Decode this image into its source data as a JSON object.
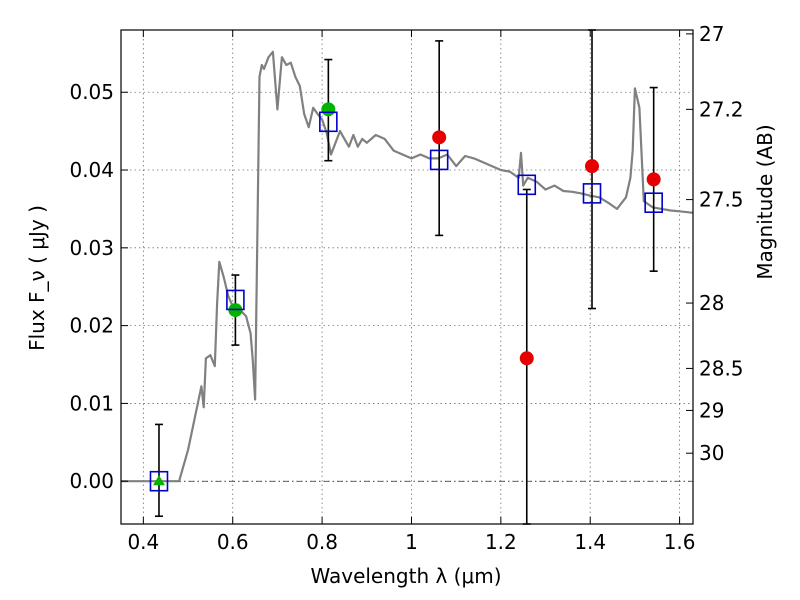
{
  "chart_data": {
    "type": "scatter",
    "xlabel": "Wavelength  λ (μm)",
    "ylabel": "Flux  F_ν ( μJy )",
    "ylabel_right": "Magnitude (AB)",
    "xlim": [
      0.35,
      1.63
    ],
    "ylim": [
      -0.0055,
      0.058
    ],
    "x_ticks": [
      0.4,
      0.6,
      0.8,
      1.0,
      1.2,
      1.4,
      1.6
    ],
    "x_tick_labels": [
      "0.4",
      "0.6",
      "0.8",
      "1",
      "1.2",
      "1.4",
      "1.6"
    ],
    "y_ticks": [
      0.0,
      0.01,
      0.02,
      0.03,
      0.04,
      0.05
    ],
    "y_tick_labels": [
      "0.00",
      "0.01",
      "0.02",
      "0.03",
      "0.04",
      "0.05"
    ],
    "right_ticks": [
      {
        "label": "27",
        "flux": 0.0575
      },
      {
        "label": "27.2",
        "flux": 0.0478
      },
      {
        "label": "27.5",
        "flux": 0.0362
      },
      {
        "label": "28",
        "flux": 0.0229
      },
      {
        "label": "28.5",
        "flux": 0.0145
      },
      {
        "label": "29",
        "flux": 0.0091
      },
      {
        "label": "30",
        "flux": 0.0036
      }
    ],
    "grid": true,
    "zero_line": 0.0,
    "colors": {
      "model": "#808080",
      "detection": "#00b400",
      "nondetection": "#e60000",
      "model_flux": "#0000cc",
      "errorbar": "#000000"
    },
    "series": [
      {
        "kind": "model_sed",
        "x": [
          0.35,
          0.48,
          0.5,
          0.52,
          0.53,
          0.535,
          0.54,
          0.55,
          0.56,
          0.565,
          0.57,
          0.58,
          0.59,
          0.6,
          0.61,
          0.62,
          0.63,
          0.64,
          0.645,
          0.65,
          0.655,
          0.66,
          0.665,
          0.67,
          0.68,
          0.69,
          0.7,
          0.71,
          0.72,
          0.73,
          0.74,
          0.75,
          0.76,
          0.77,
          0.78,
          0.79,
          0.8,
          0.81,
          0.82,
          0.83,
          0.84,
          0.85,
          0.86,
          0.87,
          0.88,
          0.89,
          0.9,
          0.92,
          0.94,
          0.96,
          0.98,
          1.0,
          1.02,
          1.04,
          1.06,
          1.08,
          1.1,
          1.12,
          1.14,
          1.16,
          1.18,
          1.2,
          1.22,
          1.24,
          1.245,
          1.25,
          1.26,
          1.28,
          1.3,
          1.32,
          1.34,
          1.36,
          1.38,
          1.4,
          1.42,
          1.44,
          1.46,
          1.48,
          1.49,
          1.495,
          1.5,
          1.51,
          1.52,
          1.54,
          1.56,
          1.58,
          1.6,
          1.63
        ],
        "y": [
          0.0,
          0.0,
          0.004,
          0.0095,
          0.0122,
          0.0095,
          0.0158,
          0.0162,
          0.0148,
          0.0228,
          0.0282,
          0.0262,
          0.0238,
          0.0225,
          0.0222,
          0.0218,
          0.0212,
          0.019,
          0.0155,
          0.0105,
          0.031,
          0.052,
          0.0535,
          0.053,
          0.0545,
          0.0552,
          0.0478,
          0.0545,
          0.0535,
          0.0538,
          0.052,
          0.0508,
          0.0472,
          0.0455,
          0.048,
          0.0472,
          0.0465,
          0.0448,
          0.042,
          0.0435,
          0.045,
          0.044,
          0.043,
          0.0445,
          0.043,
          0.044,
          0.0435,
          0.0445,
          0.044,
          0.0425,
          0.042,
          0.0415,
          0.042,
          0.0415,
          0.0415,
          0.042,
          0.0405,
          0.0418,
          0.0415,
          0.041,
          0.0405,
          0.04,
          0.0398,
          0.039,
          0.0422,
          0.038,
          0.039,
          0.0385,
          0.0375,
          0.038,
          0.0373,
          0.0372,
          0.037,
          0.0367,
          0.0365,
          0.0358,
          0.035,
          0.0365,
          0.039,
          0.0425,
          0.0505,
          0.048,
          0.036,
          0.0352,
          0.035,
          0.0348,
          0.0347,
          0.0345
        ]
      },
      {
        "kind": "model_flux",
        "marker": "open-square",
        "points": [
          {
            "x": 0.435,
            "y": 0.0
          },
          {
            "x": 0.606,
            "y": 0.0233
          },
          {
            "x": 0.814,
            "y": 0.0462
          },
          {
            "x": 1.062,
            "y": 0.0413
          },
          {
            "x": 1.258,
            "y": 0.0381
          },
          {
            "x": 1.404,
            "y": 0.037
          },
          {
            "x": 1.542,
            "y": 0.0358
          }
        ]
      },
      {
        "kind": "detections",
        "points": [
          {
            "x": 0.435,
            "y": 0.0,
            "lo": -0.0045,
            "hi": 0.0073,
            "marker": "triangle"
          },
          {
            "x": 0.606,
            "y": 0.022,
            "lo": 0.0175,
            "hi": 0.0265,
            "marker": "circle"
          },
          {
            "x": 0.814,
            "y": 0.0478,
            "lo": 0.0412,
            "hi": 0.0542,
            "marker": "circle"
          }
        ]
      },
      {
        "kind": "nondetections",
        "points": [
          {
            "x": 1.062,
            "y": 0.0442,
            "lo": 0.0316,
            "hi": 0.0566
          },
          {
            "x": 1.258,
            "y": 0.0158,
            "lo": -0.0055,
            "hi": 0.0375
          },
          {
            "x": 1.404,
            "y": 0.0405,
            "lo": 0.0222,
            "hi": 0.058
          },
          {
            "x": 1.542,
            "y": 0.0388,
            "lo": 0.027,
            "hi": 0.0506
          }
        ]
      }
    ]
  }
}
